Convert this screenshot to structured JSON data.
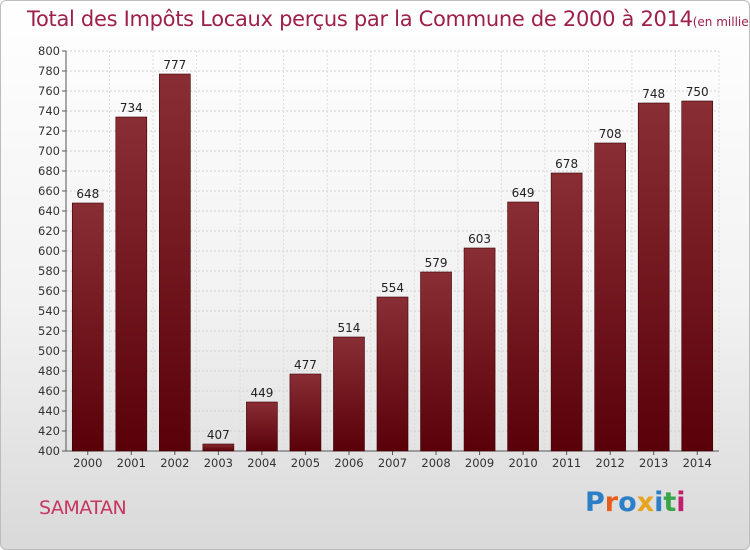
{
  "title": "Total des Impôts Locaux perçus par la Commune de 2000 à 2014",
  "unit": "(en milliers d'€)",
  "commune": "SAMATAN",
  "logo": {
    "text": "Proxiti",
    "colors": [
      "#2b7fc6",
      "#e85d1e",
      "#2b7fc6",
      "#e8a41e",
      "#2b7fc6",
      "#3aa64a",
      "#c21e6e"
    ]
  },
  "colors": {
    "bar_top": "#8a2e35",
    "bar_bottom": "#5a0008",
    "bar_edge": "#3d0005",
    "title": "#9e1f4a"
  },
  "chart_data": {
    "type": "bar",
    "title": "Total des Impôts Locaux perçus par la Commune de 2000 à 2014",
    "xlabel": "",
    "ylabel": "",
    "categories": [
      "2000",
      "2001",
      "2002",
      "2003",
      "2004",
      "2005",
      "2006",
      "2007",
      "2008",
      "2009",
      "2010",
      "2011",
      "2012",
      "2013",
      "2014"
    ],
    "values": [
      648,
      734,
      777,
      407,
      449,
      477,
      514,
      554,
      579,
      603,
      649,
      678,
      708,
      748,
      750
    ],
    "ylim": [
      400,
      800
    ],
    "ytick_step": 20,
    "grid": true
  }
}
